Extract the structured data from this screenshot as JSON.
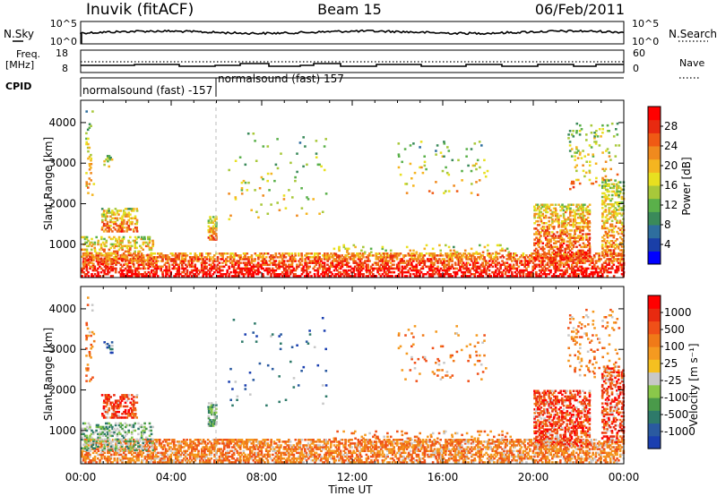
{
  "header": {
    "station": "Inuvik (fitACF)",
    "beam": "Beam 15",
    "date": "06/Feb/2011"
  },
  "strips": {
    "nsky_label": "N.Sky",
    "nsky_ticks": [
      "10^5",
      "10^0"
    ],
    "nsearch_label": "N.Search",
    "nsearch_ticks": [
      "10^5",
      "10^0"
    ],
    "freq_label": "Freq.",
    "freq_unit": "[MHz]",
    "freq_ticks": [
      "18",
      "8"
    ],
    "nave_label": "Nave",
    "nave_ticks": [
      "60",
      "0"
    ],
    "cpid_label": "CPID",
    "cpid_1": "normalsound (fast) -157",
    "cpid_2": "normalsound (fast) 157"
  },
  "chart_data": [
    {
      "type": "heatmap",
      "panel": "power",
      "xlabel": "",
      "ylabel": "Slant Range [km]",
      "ylim": [
        180,
        4550
      ],
      "yticks": [
        "1000",
        "2000",
        "3000",
        "4000"
      ],
      "xlim": [
        "00:00",
        "24:00"
      ],
      "colorbar_label": "Power [dB]",
      "colorbar_ticks": [
        "28",
        "24",
        "20",
        "16",
        "12",
        "8",
        "4"
      ],
      "colors": [
        "#0000ff",
        "#1a3fa8",
        "#2e6e9e",
        "#3a8a5a",
        "#5ab04a",
        "#a8c83a",
        "#e8e020",
        "#f5b520",
        "#f08a1e",
        "#f05a14",
        "#e82a10",
        "#ff0000"
      ]
    },
    {
      "type": "heatmap",
      "panel": "velocity",
      "xlabel": "Time UT",
      "ylabel": "Slant Range [km]",
      "ylim": [
        180,
        4550
      ],
      "yticks": [
        "1000",
        "2000",
        "3000",
        "4000"
      ],
      "xticks": [
        "00:00",
        "04:00",
        "08:00",
        "12:00",
        "16:00",
        "20:00",
        "00:00"
      ],
      "colorbar_label": "Velocity [m s⁻¹]",
      "colorbar_ticks": [
        "1000",
        "500",
        "100",
        "25",
        "-25",
        "-100",
        "-500",
        "-1000"
      ],
      "colors": [
        "#1a3fb0",
        "#2a5aa0",
        "#2e7a6a",
        "#4a9a4a",
        "#8ac84a",
        "#c8c8c8",
        "#f5c020",
        "#f59a20",
        "#f07a18",
        "#f05018",
        "#e82a10",
        "#ff0000"
      ]
    }
  ]
}
